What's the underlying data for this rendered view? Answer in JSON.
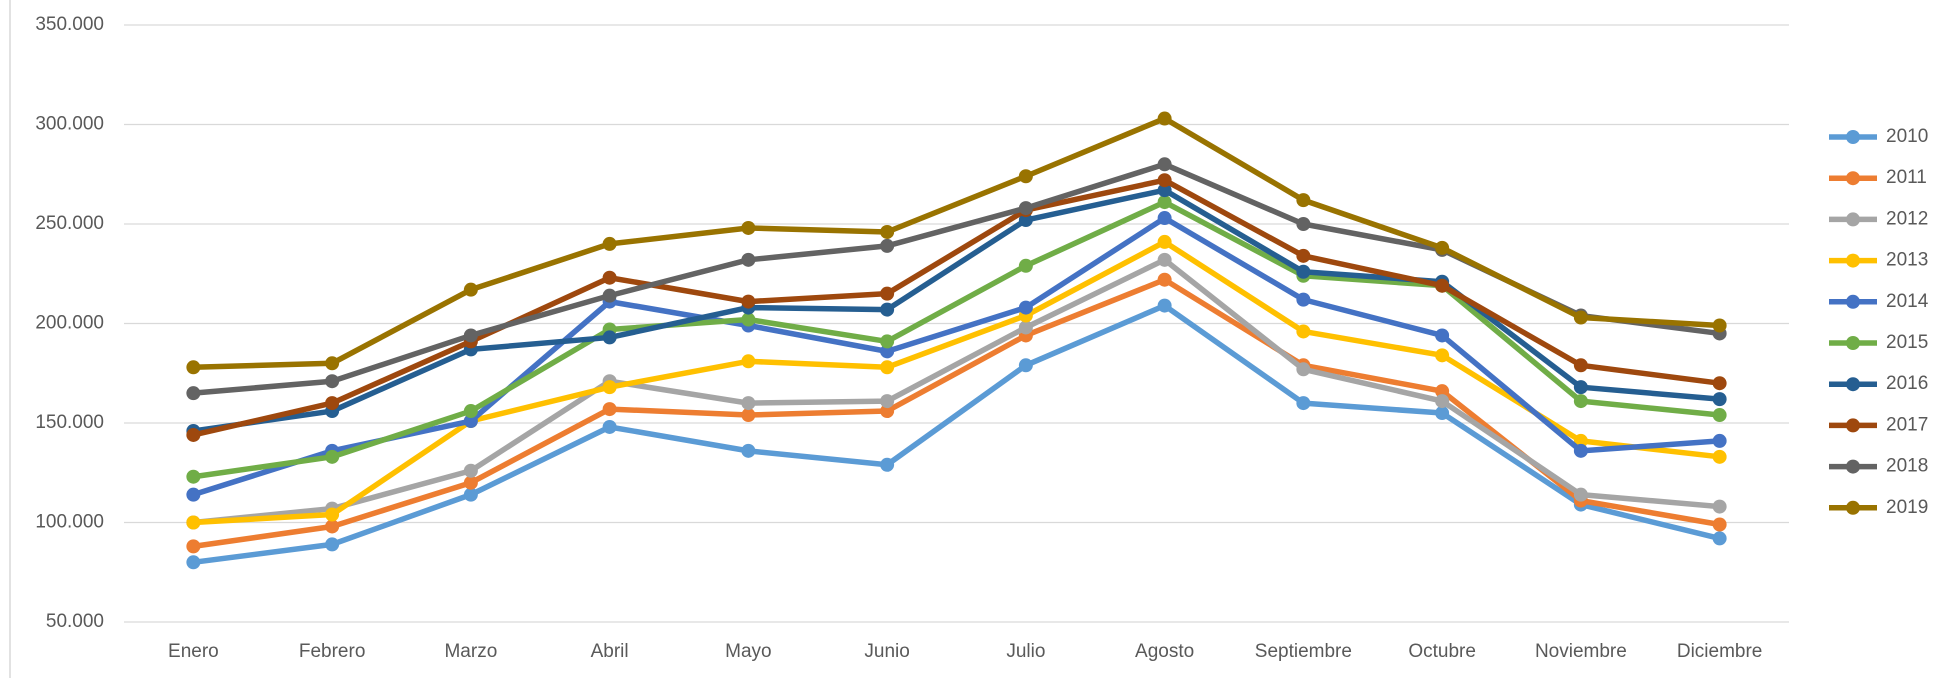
{
  "chart_data": {
    "type": "line",
    "categories": [
      "Enero",
      "Febrero",
      "Marzo",
      "Abril",
      "Mayo",
      "Junio",
      "Julio",
      "Agosto",
      "Septiembre",
      "Octubre",
      "Noviembre",
      "Diciembre"
    ],
    "ylim": [
      50000,
      350000
    ],
    "yticks": [
      {
        "value": 50000,
        "label": "50.000"
      },
      {
        "value": 100000,
        "label": "100.000"
      },
      {
        "value": 150000,
        "label": "150.000"
      },
      {
        "value": 200000,
        "label": "200.000"
      },
      {
        "value": 250000,
        "label": "250.000"
      },
      {
        "value": 300000,
        "label": "300.000"
      },
      {
        "value": 350000,
        "label": "350.000"
      }
    ],
    "grid": true,
    "legend": "right",
    "series": [
      {
        "name": "2010",
        "color": "#5b9bd5",
        "values": [
          80000,
          89000,
          114000,
          148000,
          136000,
          129000,
          179000,
          209000,
          160000,
          155000,
          109000,
          92000
        ]
      },
      {
        "name": "2011",
        "color": "#ed7d31",
        "values": [
          88000,
          98000,
          120000,
          157000,
          154000,
          156000,
          194000,
          222000,
          179000,
          166000,
          111000,
          99000
        ]
      },
      {
        "name": "2012",
        "color": "#a5a5a5",
        "values": [
          100000,
          107000,
          126000,
          171000,
          160000,
          161000,
          198000,
          232000,
          177000,
          161000,
          114000,
          108000
        ]
      },
      {
        "name": "2013",
        "color": "#ffc000",
        "values": [
          100000,
          104000,
          151000,
          168000,
          181000,
          178000,
          204000,
          241000,
          196000,
          184000,
          141000,
          133000
        ]
      },
      {
        "name": "2014",
        "color": "#4472c4",
        "values": [
          114000,
          136000,
          151000,
          211000,
          199000,
          186000,
          208000,
          253000,
          212000,
          194000,
          136000,
          141000
        ]
      },
      {
        "name": "2015",
        "color": "#70ad47",
        "values": [
          123000,
          133000,
          156000,
          197000,
          202000,
          191000,
          229000,
          261000,
          224000,
          219000,
          161000,
          154000
        ]
      },
      {
        "name": "2016",
        "color": "#255e91",
        "values": [
          146000,
          156000,
          187000,
          193000,
          208000,
          207000,
          252000,
          267000,
          226000,
          221000,
          168000,
          162000
        ]
      },
      {
        "name": "2017",
        "color": "#9e480e",
        "values": [
          144000,
          160000,
          191000,
          223000,
          211000,
          215000,
          257000,
          272000,
          234000,
          219000,
          179000,
          170000
        ]
      },
      {
        "name": "2018",
        "color": "#636363",
        "values": [
          165000,
          171000,
          194000,
          214000,
          232000,
          239000,
          258000,
          280000,
          250000,
          237000,
          204000,
          195000
        ]
      },
      {
        "name": "2019",
        "color": "#997300",
        "values": [
          178000,
          180000,
          217000,
          240000,
          248000,
          246000,
          274000,
          303000,
          262000,
          238000,
          203000,
          199000
        ]
      }
    ]
  }
}
